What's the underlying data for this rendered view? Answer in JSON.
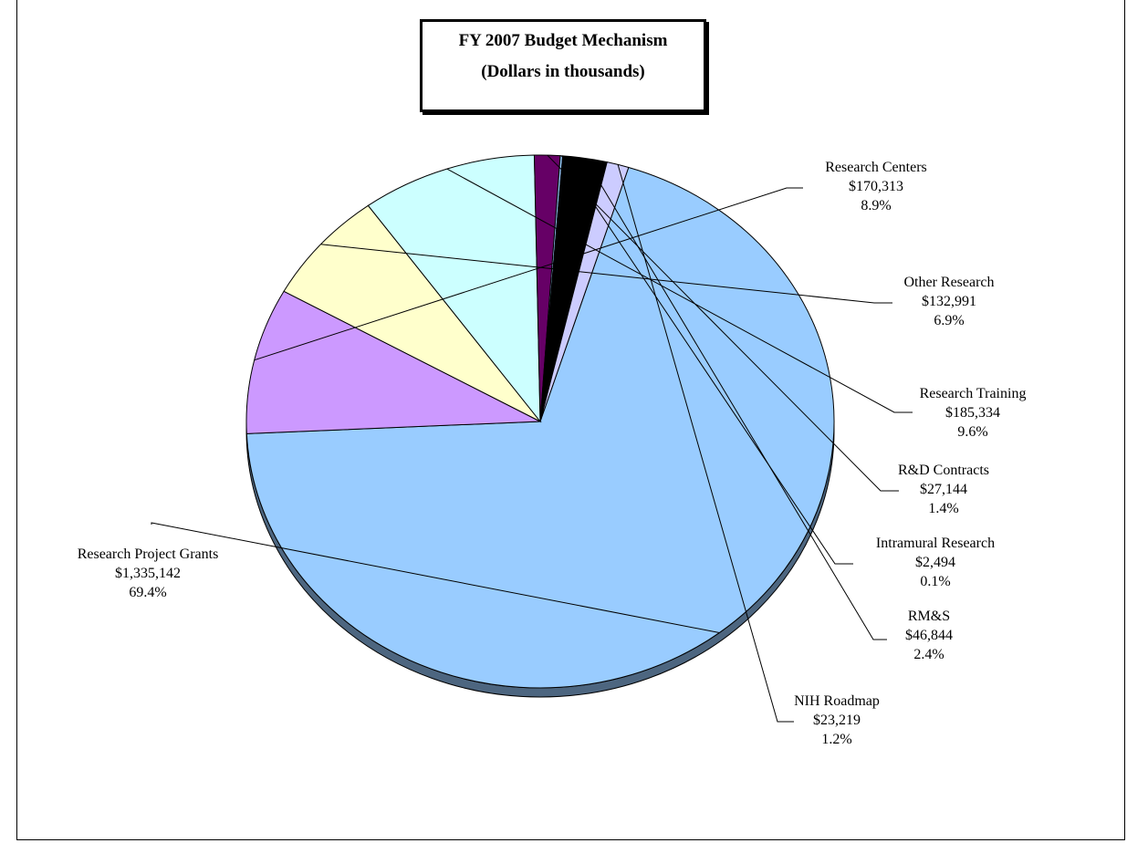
{
  "title": {
    "line1": "FY 2007 Budget Mechanism",
    "line2": "(Dollars in thousands)"
  },
  "chart_data": {
    "type": "pie",
    "title": "FY 2007 Budget Mechanism",
    "subtitle": "(Dollars in thousands)",
    "slices": [
      {
        "label": "Research Project Grants",
        "amount": "$1,335,142",
        "percent": "69.4%",
        "value": 1335142,
        "color": "#99ccff"
      },
      {
        "label": "Research Centers",
        "amount": "$170,313",
        "percent": "8.9%",
        "value": 170313,
        "color": "#cc99ff"
      },
      {
        "label": "Other Research",
        "amount": "$132,991",
        "percent": "6.9%",
        "value": 132991,
        "color": "#ffffcc"
      },
      {
        "label": "Research Training",
        "amount": "$185,334",
        "percent": "9.6%",
        "value": 185334,
        "color": "#ccffff"
      },
      {
        "label": "R&D Contracts",
        "amount": "$27,144",
        "percent": "1.4%",
        "value": 27144,
        "color": "#660066"
      },
      {
        "label": "Intramural Research",
        "amount": "$2,494",
        "percent": "0.1%",
        "value": 2494,
        "color": "#99ccff"
      },
      {
        "label": "RM&S",
        "amount": "$46,844",
        "percent": "2.4%",
        "value": 46844,
        "color": "#000000"
      },
      {
        "label": "NIH Roadmap",
        "amount": "$23,219",
        "percent": "1.2%",
        "value": 23219,
        "color": "#ccccff"
      }
    ]
  }
}
